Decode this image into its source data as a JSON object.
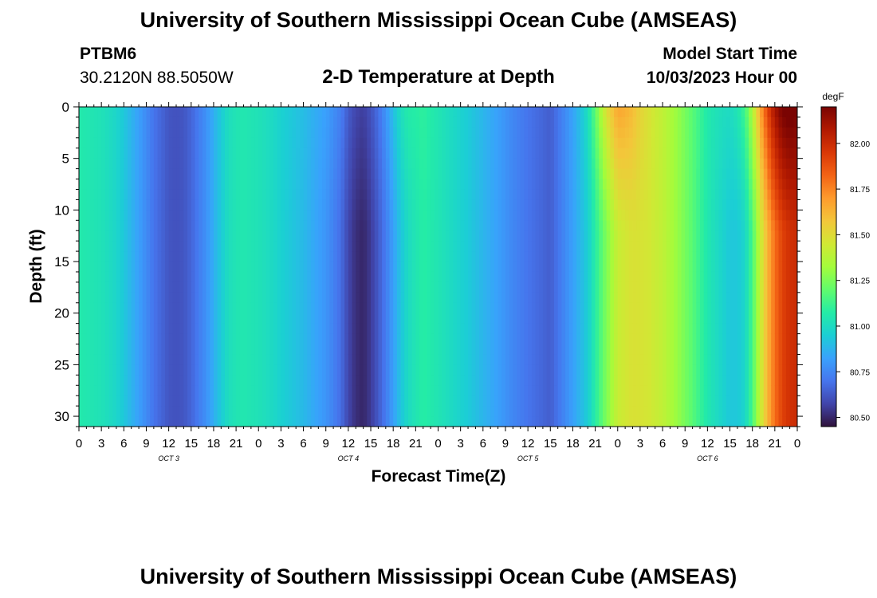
{
  "page": {
    "title_top": "University of Southern Mississippi Ocean Cube (AMSEAS)",
    "title_bottom": "University of Southern Mississippi Ocean Cube (AMSEAS)",
    "station_id": "PTBM6",
    "coords": "30.2120N  88.5050W",
    "subtitle": "2-D Temperature at Depth",
    "model_start_label": "Model Start Time",
    "model_start_value": "10/03/2023 Hour 00"
  },
  "chart_data": {
    "type": "heatmap",
    "title": "2-D Temperature at Depth",
    "xlabel": "Forecast Time(Z)",
    "ylabel": "Depth (ft)",
    "x_range_hours": [
      0,
      96
    ],
    "y_range_ft": [
      0,
      31
    ],
    "x_tick_labels": [
      "0",
      "3",
      "6",
      "9",
      "12",
      "15",
      "18",
      "21",
      "0",
      "3",
      "6",
      "9",
      "12",
      "15",
      "18",
      "21",
      "0",
      "3",
      "6",
      "9",
      "12",
      "15",
      "18",
      "21",
      "0",
      "3",
      "6",
      "9",
      "12",
      "15",
      "18",
      "21",
      "0"
    ],
    "day_labels": [
      "OCT 3",
      "OCT 4",
      "OCT 5",
      "OCT 6"
    ],
    "day_label_hours": [
      12,
      36,
      60,
      84
    ],
    "y_ticks": [
      0,
      5,
      10,
      15,
      20,
      25,
      30
    ],
    "y_tick_labels": [
      "0",
      "5",
      "10",
      "15",
      "20",
      "25",
      "30"
    ],
    "colorbar": {
      "unit": "degF",
      "range": [
        80.45,
        82.2
      ],
      "tick_values": [
        80.5,
        80.75,
        81.0,
        81.25,
        81.5,
        81.75,
        82.0
      ],
      "tick_labels": [
        "80.50",
        "80.75",
        "81.00",
        "81.25",
        "81.50",
        "81.75",
        "82.00"
      ],
      "colors": [
        "#30123b",
        "#4145ab",
        "#4675ed",
        "#39a2fc",
        "#1bcfd4",
        "#24eca6",
        "#61fc6c",
        "#a4fc3b",
        "#d1e834",
        "#f3c63a",
        "#fe9b2d",
        "#f36315",
        "#d93806",
        "#b11901",
        "#7a0402"
      ]
    },
    "surface_profile": {
      "hours": [
        0,
        1,
        3,
        5,
        6,
        8,
        9,
        10,
        12,
        13,
        14,
        15,
        17,
        18,
        19,
        20,
        21,
        22,
        24,
        26,
        27,
        30,
        33,
        35,
        36,
        37,
        38,
        39,
        40,
        41,
        42,
        43,
        44,
        46,
        47,
        48,
        50,
        52,
        54,
        56,
        58,
        60,
        62,
        63,
        64,
        66,
        68,
        70,
        72,
        74,
        76,
        78,
        80,
        82,
        84,
        86,
        87,
        88,
        89,
        90,
        91,
        92,
        93,
        94,
        95,
        96
      ],
      "temps_degF": [
        81.06,
        81.05,
        81.03,
        80.98,
        80.93,
        80.82,
        80.76,
        80.7,
        80.62,
        80.61,
        80.62,
        80.66,
        80.78,
        80.86,
        80.94,
        81.01,
        81.04,
        81.05,
        81.03,
        80.99,
        80.96,
        80.89,
        80.79,
        80.68,
        80.58,
        80.52,
        80.5,
        80.55,
        80.63,
        80.72,
        80.82,
        80.92,
        81.0,
        81.08,
        81.06,
        81.04,
        80.99,
        80.94,
        80.88,
        80.82,
        80.75,
        80.7,
        80.66,
        80.64,
        80.7,
        80.82,
        80.95,
        81.2,
        81.42,
        81.48,
        81.46,
        81.4,
        81.3,
        81.18,
        81.05,
        80.97,
        80.93,
        80.93,
        80.98,
        81.15,
        81.4,
        81.62,
        81.8,
        81.92,
        81.98,
        82.0
      ],
      "depth_effects": [
        {
          "hour": 38,
          "width_hours": 6,
          "min_depth": 0,
          "delta_degF": 0.06
        },
        {
          "hour": 43,
          "width_hours": 2,
          "min_depth": 0,
          "delta_degF": 0.06
        },
        {
          "hour": 71.5,
          "width_hours": 3,
          "min_depth": 0,
          "delta_degF": 0.25
        },
        {
          "hour": 93,
          "width_hours": 5,
          "min_depth": 0,
          "delta_degF": 0.3
        }
      ]
    }
  }
}
